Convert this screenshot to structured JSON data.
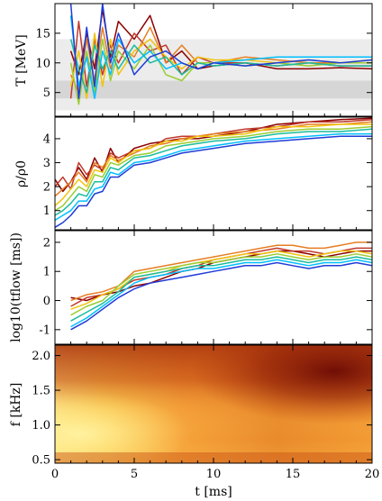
{
  "figure": {
    "x_axis_label": "t [ms]",
    "y_axis_labels": [
      "T [MeV]",
      "ρ/ρ0",
      "log10(tflow [ms])",
      "f [kHz]"
    ],
    "x_ticks": [
      "0",
      "5",
      "10",
      "15",
      "20"
    ]
  },
  "chart_data": [
    {
      "type": "line",
      "ylabel": "T [MeV]",
      "xlim": [
        0,
        20
      ],
      "ylim": [
        1,
        20
      ],
      "yticks": [
        5,
        10,
        15
      ],
      "shaded_bands": [
        {
          "from": 2,
          "to": 14,
          "color": "#ececec"
        },
        {
          "from": 4,
          "to": 7,
          "color": "#d6d6d6"
        }
      ],
      "series": [
        {
          "color": "#8b0000",
          "x": [
            1,
            1.5,
            2,
            2.5,
            3,
            3.5,
            4,
            5,
            6,
            7,
            8,
            9,
            10,
            12,
            14,
            16,
            18,
            20
          ],
          "y": [
            12,
            8,
            15,
            9,
            19,
            11,
            17,
            14,
            18,
            10,
            12,
            9,
            9.5,
            10,
            9,
            9,
            9.2,
            9
          ]
        },
        {
          "color": "#c0392b",
          "x": [
            1,
            1.5,
            2,
            2.5,
            3,
            3.5,
            4,
            5,
            6,
            7,
            8,
            9,
            10,
            12,
            14,
            16,
            18,
            20
          ],
          "y": [
            4,
            17,
            6,
            14,
            8,
            13,
            10,
            15,
            12,
            13,
            8,
            11,
            10,
            10,
            9.5,
            10,
            9.5,
            9.5
          ]
        },
        {
          "color": "#e67e22",
          "x": [
            1,
            1.5,
            2,
            2.5,
            3,
            3.5,
            4,
            5,
            6,
            7,
            8,
            9,
            10,
            12,
            14,
            16,
            18,
            20
          ],
          "y": [
            8,
            5,
            14,
            7,
            16,
            9,
            13,
            11,
            16,
            10,
            13,
            10,
            10,
            11,
            10.5,
            10,
            10,
            10
          ]
        },
        {
          "color": "#f1c40f",
          "x": [
            1,
            1.5,
            2,
            2.5,
            3,
            3.5,
            4,
            5,
            6,
            7,
            8,
            9,
            10,
            12,
            14,
            16,
            18,
            20
          ],
          "y": [
            6,
            12,
            4,
            15,
            6,
            14,
            8,
            12,
            14,
            11,
            9,
            11,
            10.5,
            10.5,
            10,
            10.5,
            10,
            10.5
          ]
        },
        {
          "color": "#9acd32",
          "x": [
            1,
            1.5,
            2,
            2.5,
            3,
            3.5,
            4,
            5,
            6,
            7,
            8,
            9,
            10,
            12,
            14,
            16,
            18,
            20
          ],
          "y": [
            10,
            3,
            12,
            5,
            14,
            7,
            12,
            9,
            13,
            8,
            7,
            10,
            10,
            9.5,
            10,
            9.5,
            10,
            10
          ]
        },
        {
          "color": "#1abc9c",
          "x": [
            1,
            1.5,
            2,
            2.5,
            3,
            3.5,
            4,
            5,
            6,
            7,
            8,
            9,
            10,
            12,
            14,
            16,
            18,
            20
          ],
          "y": [
            14,
            9,
            5,
            13,
            9,
            12,
            9,
            13,
            10,
            11,
            8,
            10,
            9.5,
            10,
            9.5,
            10,
            9.5,
            9.5
          ]
        },
        {
          "color": "#00bfff",
          "x": [
            1,
            1.5,
            2,
            2.5,
            3,
            3.5,
            4,
            5,
            6,
            7,
            8,
            9,
            10,
            12,
            14,
            16,
            18,
            20
          ],
          "y": [
            18,
            6,
            11,
            4,
            12,
            8,
            14,
            10,
            12,
            9,
            10,
            9,
            10,
            10.5,
            11,
            11,
            11,
            11
          ]
        },
        {
          "color": "#1f3bd6",
          "x": [
            1,
            1.5,
            2,
            2.5,
            3,
            3.5,
            4,
            5,
            6,
            7,
            8,
            9,
            10,
            12,
            14,
            16,
            18,
            20
          ],
          "y": [
            20,
            4,
            16,
            6,
            20,
            10,
            15,
            8,
            11,
            12,
            10,
            9,
            10,
            9.5,
            10,
            10.5,
            10,
            10.5
          ]
        }
      ]
    },
    {
      "type": "line",
      "ylabel": "ρ/ρ0",
      "xlim": [
        0,
        20
      ],
      "ylim": [
        0.2,
        4.9
      ],
      "yticks": [
        1,
        2,
        3,
        4
      ],
      "series": [
        {
          "color": "#8b0000",
          "x": [
            0,
            0.5,
            1,
            1.5,
            2,
            2.5,
            3,
            3.5,
            4,
            5,
            6,
            7,
            8,
            9,
            10,
            12,
            14,
            16,
            18,
            20
          ],
          "y": [
            2.3,
            1.8,
            2.2,
            2.8,
            2.3,
            3.2,
            2.6,
            3.6,
            3.0,
            3.6,
            3.8,
            3.9,
            4.0,
            4.0,
            4.1,
            4.3,
            4.6,
            4.7,
            4.8,
            4.85
          ]
        },
        {
          "color": "#c0392b",
          "x": [
            0,
            0.5,
            1,
            1.5,
            2,
            2.5,
            3,
            3.5,
            4,
            5,
            6,
            7,
            8,
            9,
            10,
            12,
            14,
            16,
            18,
            20
          ],
          "y": [
            2.0,
            2.4,
            1.9,
            3.0,
            2.5,
            2.9,
            2.7,
            3.4,
            3.2,
            3.5,
            3.6,
            4.0,
            4.1,
            4.1,
            4.2,
            4.4,
            4.5,
            4.7,
            4.7,
            4.8
          ]
        },
        {
          "color": "#e67e22",
          "x": [
            0,
            0.5,
            1,
            1.5,
            2,
            2.5,
            3,
            3.5,
            4,
            5,
            6,
            7,
            8,
            9,
            10,
            12,
            14,
            16,
            18,
            20
          ],
          "y": [
            1.6,
            1.9,
            2.2,
            2.6,
            2.2,
            3.0,
            2.8,
            3.3,
            3.1,
            3.4,
            3.7,
            3.8,
            4.0,
            4.1,
            4.2,
            4.3,
            4.4,
            4.6,
            4.6,
            4.7
          ]
        },
        {
          "color": "#f1c40f",
          "x": [
            0,
            0.5,
            1,
            1.5,
            2,
            2.5,
            3,
            3.5,
            4,
            5,
            6,
            7,
            8,
            9,
            10,
            12,
            14,
            16,
            18,
            20
          ],
          "y": [
            1.2,
            1.5,
            1.9,
            2.3,
            2.0,
            2.7,
            2.6,
            3.2,
            3.0,
            3.5,
            3.6,
            3.9,
            3.9,
            4.1,
            4.1,
            4.2,
            4.5,
            4.5,
            4.6,
            4.6
          ]
        },
        {
          "color": "#9acd32",
          "x": [
            0,
            0.5,
            1,
            1.5,
            2,
            2.5,
            3,
            3.5,
            4,
            5,
            6,
            7,
            8,
            9,
            10,
            12,
            14,
            16,
            18,
            20
          ],
          "y": [
            1.0,
            1.2,
            1.6,
            2.0,
            1.8,
            2.5,
            2.4,
            3.0,
            2.9,
            3.3,
            3.4,
            3.7,
            3.8,
            3.9,
            4.0,
            4.1,
            4.3,
            4.4,
            4.4,
            4.5
          ]
        },
        {
          "color": "#1abc9c",
          "x": [
            0,
            0.5,
            1,
            1.5,
            2,
            2.5,
            3,
            3.5,
            4,
            5,
            6,
            7,
            8,
            9,
            10,
            12,
            14,
            16,
            18,
            20
          ],
          "y": [
            0.8,
            1.0,
            1.3,
            1.7,
            1.6,
            2.2,
            2.2,
            2.8,
            2.7,
            3.2,
            3.3,
            3.5,
            3.7,
            3.8,
            3.9,
            4.0,
            4.2,
            4.3,
            4.3,
            4.4
          ]
        },
        {
          "color": "#00bfff",
          "x": [
            0,
            0.5,
            1,
            1.5,
            2,
            2.5,
            3,
            3.5,
            4,
            5,
            6,
            7,
            8,
            9,
            10,
            12,
            14,
            16,
            18,
            20
          ],
          "y": [
            0.6,
            0.8,
            1.0,
            1.4,
            1.4,
            1.9,
            2.0,
            2.6,
            2.5,
            3.0,
            3.1,
            3.3,
            3.5,
            3.6,
            3.7,
            3.9,
            4.0,
            4.1,
            4.2,
            4.2
          ]
        },
        {
          "color": "#1f3bd6",
          "x": [
            0,
            0.5,
            1,
            1.5,
            2,
            2.5,
            3,
            3.5,
            4,
            5,
            6,
            7,
            8,
            9,
            10,
            12,
            14,
            16,
            18,
            20
          ],
          "y": [
            0.3,
            0.5,
            0.8,
            1.2,
            1.2,
            1.7,
            1.8,
            2.4,
            2.4,
            2.9,
            3.0,
            3.2,
            3.4,
            3.5,
            3.6,
            3.8,
            3.9,
            4.0,
            4.1,
            4.1
          ]
        }
      ]
    },
    {
      "type": "line",
      "ylabel": "log10(tflow [ms])",
      "xlim": [
        0,
        20
      ],
      "ylim": [
        -1.5,
        2.4
      ],
      "yticks": [
        -1,
        0,
        1,
        2
      ],
      "series": [
        {
          "color": "#8b0000",
          "x": [
            1,
            2,
            3,
            4,
            5,
            6,
            7,
            8,
            9,
            10,
            11,
            12,
            13,
            14,
            15,
            16,
            17,
            18,
            19,
            20
          ],
          "y": [
            0.1,
            0.0,
            0.2,
            0.3,
            0.5,
            0.6,
            0.8,
            1.0,
            1.1,
            1.3,
            1.4,
            1.5,
            1.6,
            1.7,
            1.7,
            1.6,
            1.5,
            1.6,
            1.7,
            1.7
          ]
        },
        {
          "color": "#c0392b",
          "x": [
            1,
            2,
            3,
            4,
            5,
            6,
            7,
            8,
            9,
            10,
            11,
            12,
            13,
            14,
            15,
            16,
            17,
            18,
            19,
            20
          ],
          "y": [
            -0.2,
            0.1,
            0.2,
            0.4,
            0.7,
            0.8,
            0.9,
            1.1,
            1.2,
            1.4,
            1.5,
            1.6,
            1.7,
            1.8,
            1.7,
            1.7,
            1.6,
            1.7,
            1.8,
            1.8
          ]
        },
        {
          "color": "#e67e22",
          "x": [
            1,
            2,
            3,
            4,
            5,
            6,
            7,
            8,
            9,
            10,
            11,
            12,
            13,
            14,
            15,
            16,
            17,
            18,
            19,
            20
          ],
          "y": [
            0.0,
            0.2,
            0.3,
            0.5,
            1.0,
            1.1,
            1.2,
            1.3,
            1.4,
            1.5,
            1.6,
            1.7,
            1.8,
            1.9,
            1.9,
            1.8,
            1.8,
            1.9,
            2.0,
            2.0
          ]
        },
        {
          "color": "#f1c40f",
          "x": [
            1,
            2,
            3,
            4,
            5,
            6,
            7,
            8,
            9,
            10,
            11,
            12,
            13,
            14,
            15,
            16,
            17,
            18,
            19,
            20
          ],
          "y": [
            -0.3,
            -0.1,
            0.2,
            0.4,
            0.8,
            0.9,
            1.0,
            1.2,
            1.3,
            1.4,
            1.5,
            1.6,
            1.6,
            1.7,
            1.6,
            1.5,
            1.6,
            1.7,
            1.7,
            1.6
          ]
        },
        {
          "color": "#9acd32",
          "x": [
            1,
            2,
            3,
            4,
            5,
            6,
            7,
            8,
            9,
            10,
            11,
            12,
            13,
            14,
            15,
            16,
            17,
            18,
            19,
            20
          ],
          "y": [
            -0.5,
            -0.2,
            0.0,
            0.5,
            0.9,
            1.0,
            1.1,
            1.2,
            1.3,
            1.3,
            1.4,
            1.5,
            1.5,
            1.6,
            1.5,
            1.4,
            1.5,
            1.5,
            1.6,
            1.5
          ]
        },
        {
          "color": "#1abc9c",
          "x": [
            1,
            2,
            3,
            4,
            5,
            6,
            7,
            8,
            9,
            10,
            11,
            12,
            13,
            14,
            15,
            16,
            17,
            18,
            19,
            20
          ],
          "y": [
            -0.7,
            -0.4,
            -0.1,
            0.3,
            0.8,
            0.9,
            1.0,
            1.1,
            1.2,
            1.2,
            1.3,
            1.4,
            1.4,
            1.5,
            1.4,
            1.3,
            1.4,
            1.4,
            1.5,
            1.4
          ]
        },
        {
          "color": "#00bfff",
          "x": [
            1,
            2,
            3,
            4,
            5,
            6,
            7,
            8,
            9,
            10,
            11,
            12,
            13,
            14,
            15,
            16,
            17,
            18,
            19,
            20
          ],
          "y": [
            -0.9,
            -0.6,
            -0.2,
            0.2,
            0.6,
            0.8,
            0.9,
            1.0,
            1.1,
            1.1,
            1.2,
            1.3,
            1.3,
            1.4,
            1.3,
            1.2,
            1.3,
            1.3,
            1.4,
            1.3
          ]
        },
        {
          "color": "#1f3bd6",
          "x": [
            1,
            2,
            3,
            4,
            5,
            6,
            7,
            8,
            9,
            10,
            11,
            12,
            13,
            14,
            15,
            16,
            17,
            18,
            19,
            20
          ],
          "y": [
            -1.0,
            -0.7,
            -0.3,
            0.1,
            0.4,
            0.6,
            0.7,
            0.8,
            0.9,
            1.0,
            1.1,
            1.2,
            1.2,
            1.3,
            1.2,
            1.1,
            1.2,
            1.2,
            1.3,
            1.2
          ]
        }
      ]
    },
    {
      "type": "heatmap",
      "ylabel": "f [kHz]",
      "xlim": [
        0,
        20
      ],
      "ylim": [
        0.45,
        2.15
      ],
      "yticks": [
        0.5,
        1.0,
        1.5,
        2.0
      ],
      "colormap": "YlOrBr",
      "description_values": {
        "bright_region": {
          "t": [
            0,
            5
          ],
          "f": [
            0.5,
            1.0
          ]
        },
        "dark_region": {
          "t": [
            10,
            20
          ],
          "f": [
            1.3,
            2.1
          ]
        }
      }
    }
  ]
}
